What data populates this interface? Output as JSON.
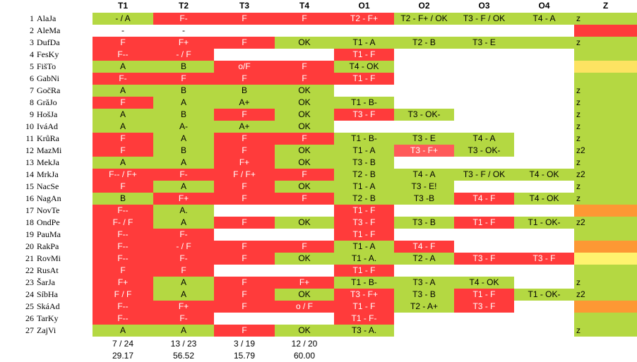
{
  "colors": {
    "green": "#b4d842",
    "red": "#ff3b3b",
    "pink": "#ff5a5a",
    "yellow": "#fde362",
    "orange": "#fd9834",
    "lightyellow": "#fff36e",
    "empty": "#ffffff"
  },
  "headers": [
    "T1",
    "T2",
    "T3",
    "T4",
    "O1",
    "O2",
    "O3",
    "O4",
    "Z"
  ],
  "rows": [
    {
      "num": "1",
      "name": "AlaJa",
      "cells": [
        [
          "- / A",
          "green"
        ],
        [
          "F-",
          "red"
        ],
        [
          "F",
          "red"
        ],
        [
          "F",
          "red"
        ],
        [
          "T2 - F+",
          "red"
        ],
        [
          "T2 - F+ / OK",
          "green"
        ],
        [
          "T3 - F / OK",
          "green"
        ],
        [
          "T4 - A",
          "green"
        ],
        [
          "z",
          "green"
        ]
      ]
    },
    {
      "num": "2",
      "name": "AleMa",
      "cells": [
        [
          "-",
          ""
        ],
        [
          "-",
          ""
        ],
        [
          "",
          ""
        ],
        [
          "",
          ""
        ],
        [
          "",
          ""
        ],
        [
          "",
          ""
        ],
        [
          "",
          ""
        ],
        [
          "",
          ""
        ],
        [
          "",
          "red"
        ]
      ]
    },
    {
      "num": "3",
      "name": "DufDa",
      "cells": [
        [
          "F",
          "red"
        ],
        [
          "F+",
          "red"
        ],
        [
          "F",
          "red"
        ],
        [
          "OK",
          "green"
        ],
        [
          "T1 - A",
          "green"
        ],
        [
          "T2 - B",
          "green"
        ],
        [
          "T3 - E",
          "green"
        ],
        [
          "",
          "green"
        ],
        [
          "z",
          "green"
        ]
      ]
    },
    {
      "num": "4",
      "name": "FesKy",
      "cells": [
        [
          "F--",
          "red"
        ],
        [
          "- / F",
          "red"
        ],
        [
          "",
          ""
        ],
        [
          "",
          ""
        ],
        [
          "T1 - F",
          "red"
        ],
        [
          "",
          ""
        ],
        [
          "",
          ""
        ],
        [
          "",
          ""
        ],
        [
          "",
          "green"
        ]
      ]
    },
    {
      "num": "5",
      "name": "FišTo",
      "cells": [
        [
          "A",
          "green"
        ],
        [
          "B",
          "green"
        ],
        [
          "o/F",
          "red"
        ],
        [
          "F",
          "red"
        ],
        [
          "T4 - OK",
          "green"
        ],
        [
          "",
          ""
        ],
        [
          "",
          ""
        ],
        [
          "",
          ""
        ],
        [
          "",
          "yellow"
        ]
      ]
    },
    {
      "num": "6",
      "name": "GabNi",
      "cells": [
        [
          "F-",
          "red"
        ],
        [
          "F",
          "red"
        ],
        [
          "F",
          "red"
        ],
        [
          "F",
          "red"
        ],
        [
          "T1 - F",
          "red"
        ],
        [
          "",
          ""
        ],
        [
          "",
          ""
        ],
        [
          "",
          ""
        ],
        [
          "",
          "green"
        ]
      ]
    },
    {
      "num": "7",
      "name": "GočRa",
      "cells": [
        [
          "A",
          "green"
        ],
        [
          "B",
          "green"
        ],
        [
          "B",
          "green"
        ],
        [
          "OK",
          "green"
        ],
        [
          "",
          ""
        ],
        [
          "",
          ""
        ],
        [
          "",
          ""
        ],
        [
          "",
          ""
        ],
        [
          "z",
          "green"
        ]
      ]
    },
    {
      "num": "8",
      "name": "GrăJo",
      "cells": [
        [
          "F",
          "red"
        ],
        [
          "A",
          "green"
        ],
        [
          "A+",
          "green"
        ],
        [
          "OK",
          "green"
        ],
        [
          "T1 - B-",
          "green"
        ],
        [
          "",
          ""
        ],
        [
          "",
          ""
        ],
        [
          "",
          ""
        ],
        [
          "z",
          "green"
        ]
      ]
    },
    {
      "num": "9",
      "name": "HošJa",
      "cells": [
        [
          "A",
          "green"
        ],
        [
          "B",
          "green"
        ],
        [
          "F",
          "red"
        ],
        [
          "OK",
          "green"
        ],
        [
          "T3 - F",
          "red"
        ],
        [
          "T3 - OK-",
          "green"
        ],
        [
          "",
          ""
        ],
        [
          "",
          ""
        ],
        [
          "z",
          "green"
        ]
      ]
    },
    {
      "num": "10",
      "name": "IváAd",
      "cells": [
        [
          "A",
          "green"
        ],
        [
          "A-",
          "green"
        ],
        [
          "A+",
          "green"
        ],
        [
          "OK",
          "green"
        ],
        [
          "",
          ""
        ],
        [
          "",
          ""
        ],
        [
          "",
          ""
        ],
        [
          "",
          ""
        ],
        [
          "z",
          "green"
        ]
      ]
    },
    {
      "num": "11",
      "name": "KrůRa",
      "cells": [
        [
          "F",
          "red"
        ],
        [
          "A",
          "green"
        ],
        [
          "F",
          "red"
        ],
        [
          "F",
          "red"
        ],
        [
          "T1 - B-",
          "green"
        ],
        [
          "T3 - E",
          "green"
        ],
        [
          "T4 - A",
          "green"
        ],
        [
          "",
          ""
        ],
        [
          "z",
          "green"
        ]
      ]
    },
    {
      "num": "12",
      "name": "MazMi",
      "cells": [
        [
          "F",
          "red"
        ],
        [
          "B",
          "green"
        ],
        [
          "F",
          "red"
        ],
        [
          "OK",
          "green"
        ],
        [
          "T1 - A",
          "green"
        ],
        [
          "T3 - F+",
          "pink"
        ],
        [
          "T3 - OK-",
          "green"
        ],
        [
          "",
          ""
        ],
        [
          "z2",
          "green"
        ]
      ]
    },
    {
      "num": "13",
      "name": "MekJa",
      "cells": [
        [
          "A",
          "green"
        ],
        [
          "A",
          "green"
        ],
        [
          "F+",
          "red"
        ],
        [
          "OK",
          "green"
        ],
        [
          "T3 - B",
          "green"
        ],
        [
          "",
          ""
        ],
        [
          "",
          ""
        ],
        [
          "",
          ""
        ],
        [
          "z",
          "green"
        ]
      ]
    },
    {
      "num": "14",
      "name": "MrkJa",
      "cells": [
        [
          "F-- / F+",
          "red"
        ],
        [
          "F-",
          "red"
        ],
        [
          "F / F+",
          "red"
        ],
        [
          "F",
          "red"
        ],
        [
          "T2 - B",
          "green"
        ],
        [
          "T4 - A",
          "green"
        ],
        [
          "T3 - F / OK",
          "green"
        ],
        [
          "T4 - OK",
          "green"
        ],
        [
          "z2",
          "green"
        ]
      ]
    },
    {
      "num": "15",
      "name": "NacSe",
      "cells": [
        [
          "F",
          "red"
        ],
        [
          "A",
          "green"
        ],
        [
          "F",
          "red"
        ],
        [
          "OK",
          "green"
        ],
        [
          "T1 - A",
          "green"
        ],
        [
          "T3 - E!",
          "green"
        ],
        [
          "",
          ""
        ],
        [
          "",
          ""
        ],
        [
          "z",
          "green"
        ]
      ]
    },
    {
      "num": "16",
      "name": "NagAn",
      "cells": [
        [
          "B",
          "green"
        ],
        [
          "F+",
          "red"
        ],
        [
          "F",
          "red"
        ],
        [
          "F",
          "red"
        ],
        [
          "T2 - B",
          "green"
        ],
        [
          "T3 -B",
          "green"
        ],
        [
          "T4 - F",
          "red"
        ],
        [
          "T4 - OK",
          "green"
        ],
        [
          "z",
          "green"
        ]
      ]
    },
    {
      "num": "17",
      "name": "NovTe",
      "cells": [
        [
          "F--",
          "red"
        ],
        [
          "A.",
          "green"
        ],
        [
          "",
          ""
        ],
        [
          "",
          ""
        ],
        [
          "T1 - F",
          "red"
        ],
        [
          "",
          ""
        ],
        [
          "",
          ""
        ],
        [
          "",
          ""
        ],
        [
          "",
          "orange"
        ]
      ]
    },
    {
      "num": "18",
      "name": "OndPe",
      "cells": [
        [
          "F- / F",
          "red"
        ],
        [
          "A",
          "green"
        ],
        [
          "F",
          "red"
        ],
        [
          "OK",
          "green"
        ],
        [
          "T3 - F",
          "red"
        ],
        [
          "T3 - B",
          "green"
        ],
        [
          "T1 - F",
          "red"
        ],
        [
          "T1 - OK-",
          "green"
        ],
        [
          "z2",
          "green"
        ]
      ]
    },
    {
      "num": "19",
      "name": "PauMa",
      "cells": [
        [
          "F--",
          "red"
        ],
        [
          "F-",
          "red"
        ],
        [
          "",
          ""
        ],
        [
          "",
          ""
        ],
        [
          "T1 - F",
          "red"
        ],
        [
          "",
          ""
        ],
        [
          "",
          ""
        ],
        [
          "",
          ""
        ],
        [
          "",
          "green"
        ]
      ]
    },
    {
      "num": "20",
      "name": "RakPa",
      "cells": [
        [
          "F--",
          "red"
        ],
        [
          "- / F",
          "red"
        ],
        [
          "F",
          "red"
        ],
        [
          "F",
          "red"
        ],
        [
          "T1 - A",
          "green"
        ],
        [
          "T4 - F",
          "red"
        ],
        [
          "",
          ""
        ],
        [
          "",
          ""
        ],
        [
          "",
          "orange"
        ]
      ]
    },
    {
      "num": "21",
      "name": "RovMi",
      "cells": [
        [
          "F--",
          "red"
        ],
        [
          "F-",
          "red"
        ],
        [
          "F",
          "red"
        ],
        [
          "OK",
          "green"
        ],
        [
          "T1 - A.",
          "green"
        ],
        [
          "T2 - A",
          "green"
        ],
        [
          "T3 - F",
          "red"
        ],
        [
          "T3 - F",
          "red"
        ],
        [
          "",
          "lightyellow"
        ]
      ]
    },
    {
      "num": "22",
      "name": "RusAt",
      "cells": [
        [
          "F",
          "red"
        ],
        [
          "F",
          "red"
        ],
        [
          "",
          ""
        ],
        [
          "",
          ""
        ],
        [
          "T1 - F",
          "red"
        ],
        [
          "",
          ""
        ],
        [
          "",
          ""
        ],
        [
          "",
          ""
        ],
        [
          "",
          "green"
        ]
      ]
    },
    {
      "num": "23",
      "name": "ŠarJa",
      "cells": [
        [
          "F+",
          "red"
        ],
        [
          "A",
          "green"
        ],
        [
          "F",
          "red"
        ],
        [
          "F+",
          "red"
        ],
        [
          "T1 - B-",
          "green"
        ],
        [
          "T3 - A",
          "green"
        ],
        [
          "T4 - OK",
          "green"
        ],
        [
          "",
          ""
        ],
        [
          "z",
          "green"
        ]
      ]
    },
    {
      "num": "24",
      "name": "SíbHa",
      "cells": [
        [
          "F / F",
          "red"
        ],
        [
          "A",
          "green"
        ],
        [
          "F",
          "red"
        ],
        [
          "OK",
          "green"
        ],
        [
          "T3 - F+",
          "red"
        ],
        [
          "T3 - B",
          "green"
        ],
        [
          "T1 - F",
          "red"
        ],
        [
          "T1 - OK-",
          "green"
        ],
        [
          "z2",
          "green"
        ]
      ]
    },
    {
      "num": "25",
      "name": "SkáAd",
      "cells": [
        [
          "F--",
          "red"
        ],
        [
          "F+",
          "red"
        ],
        [
          "F",
          "red"
        ],
        [
          "o / F",
          "red"
        ],
        [
          "T1 - F",
          "red"
        ],
        [
          "T2 - A+",
          "green"
        ],
        [
          "T3 - F",
          "red"
        ],
        [
          "",
          ""
        ],
        [
          "",
          "orange"
        ]
      ]
    },
    {
      "num": "26",
      "name": "TarKy",
      "cells": [
        [
          "F--",
          "red"
        ],
        [
          "F-",
          "red"
        ],
        [
          "",
          ""
        ],
        [
          "",
          ""
        ],
        [
          "T1 - F-",
          "red"
        ],
        [
          "",
          ""
        ],
        [
          "",
          ""
        ],
        [
          "",
          ""
        ],
        [
          "",
          "green"
        ]
      ]
    },
    {
      "num": "27",
      "name": "ZajVi",
      "cells": [
        [
          "A",
          "green"
        ],
        [
          "A",
          "green"
        ],
        [
          "F",
          "red"
        ],
        [
          "OK",
          "green"
        ],
        [
          "T3 - A.",
          "green"
        ],
        [
          "",
          ""
        ],
        [
          "",
          ""
        ],
        [
          "",
          ""
        ],
        [
          "z",
          "green"
        ]
      ]
    }
  ],
  "footer": {
    "counts": [
      "7 / 24",
      "13 / 23",
      "3 / 19",
      "12 / 20"
    ],
    "percents": [
      "29.17",
      "56.52",
      "15.79",
      "60.00"
    ]
  }
}
